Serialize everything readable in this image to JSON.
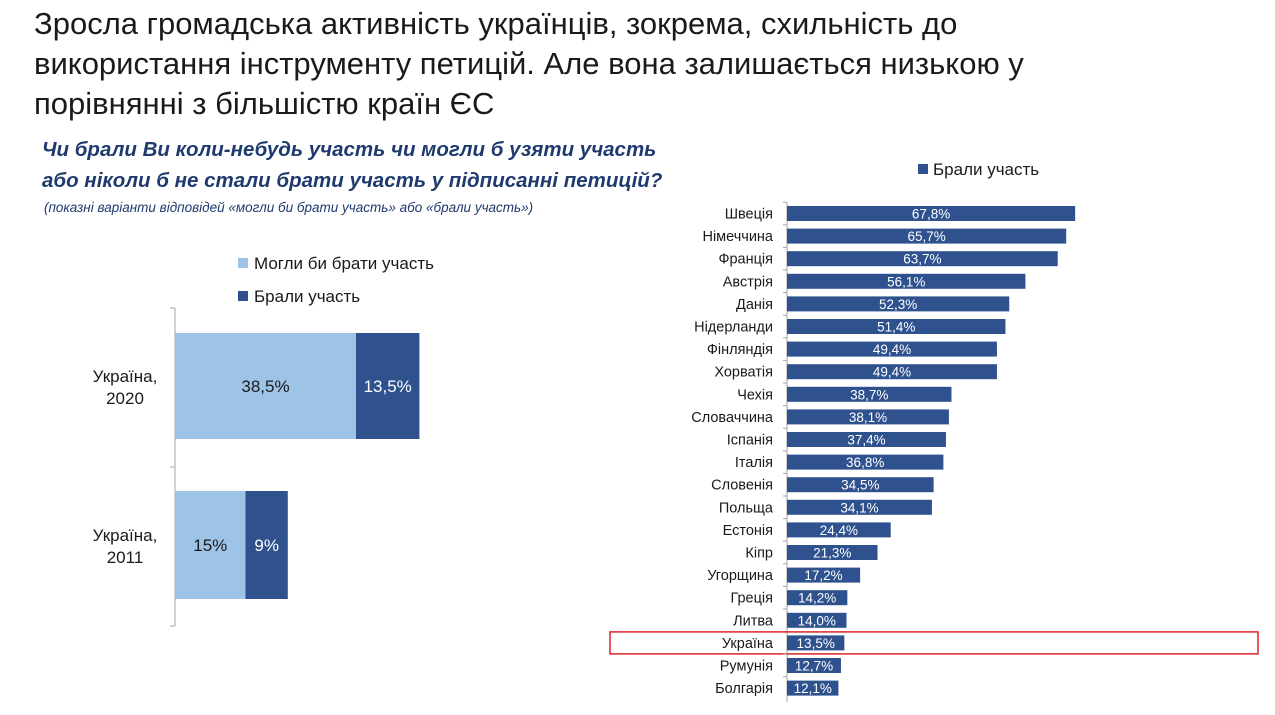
{
  "slide": {
    "title_lines": [
      "Зросла громадська активність українців, зокрема, схильність до",
      "використання інструменту петицій. Але вона залишається низькою у",
      "порівнянні з більшістю країн ЄС"
    ],
    "question_lines": [
      "Чи брали Ви коли-небудь участь чи могли б узяти участь",
      "або ніколи б не стали брати участь у підписанні петицій?"
    ],
    "question_note": "(показні варіанти відповідей «могли би брати участь» або «брали участь»)"
  },
  "colors": {
    "light": "#9dc3e6",
    "dark": "#2f528f",
    "highlight": "#e0242a",
    "axis": "#a6a6a6"
  },
  "chart_data": [
    {
      "type": "bar",
      "orientation": "horizontal",
      "stacked": true,
      "categories": [
        "Україна,\n2020",
        "Україна,\n2011"
      ],
      "series": [
        {
          "name": "Могли би брати участь",
          "values": [
            38.5,
            15
          ],
          "labels": [
            "38,5%",
            "15%"
          ],
          "color": "#9dc3e6"
        },
        {
          "name": "Брали участь",
          "values": [
            13.5,
            9
          ],
          "labels": [
            "13,5%",
            "9%"
          ],
          "color": "#2f528f"
        }
      ],
      "legend": {
        "position": "top"
      }
    },
    {
      "type": "bar",
      "orientation": "horizontal",
      "categories": [
        "Швеція",
        "Німеччина",
        "Франція",
        "Австрія",
        "Данія",
        "Нідерланди",
        "Фінляндія",
        "Хорватія",
        "Чехія",
        "Словаччина",
        "Іспанія",
        "Італія",
        "Словенія",
        "Польща",
        "Естонія",
        "Кіпр",
        "Угорщина",
        "Греція",
        "Литва",
        "Україна",
        "Румунія",
        "Болгарія"
      ],
      "series": [
        {
          "name": "Брали участь",
          "values": [
            67.8,
            65.7,
            63.7,
            56.1,
            52.3,
            51.4,
            49.4,
            49.4,
            38.7,
            38.1,
            37.4,
            36.8,
            34.5,
            34.1,
            24.4,
            21.3,
            17.2,
            14.2,
            14.0,
            13.5,
            12.7,
            12.1
          ],
          "labels": [
            "67,8%",
            "65,7%",
            "63,7%",
            "56,1%",
            "52,3%",
            "51,4%",
            "49,4%",
            "49,4%",
            "38,7%",
            "38,1%",
            "37,4%",
            "36,8%",
            "34,5%",
            "34,1%",
            "24,4%",
            "21,3%",
            "17,2%",
            "14,2%",
            "14,0%",
            "13,5%",
            "12,7%",
            "12,1%"
          ],
          "color": "#2f528f"
        }
      ],
      "highlighted_category": "Україна",
      "legend": {
        "position": "top"
      }
    }
  ]
}
